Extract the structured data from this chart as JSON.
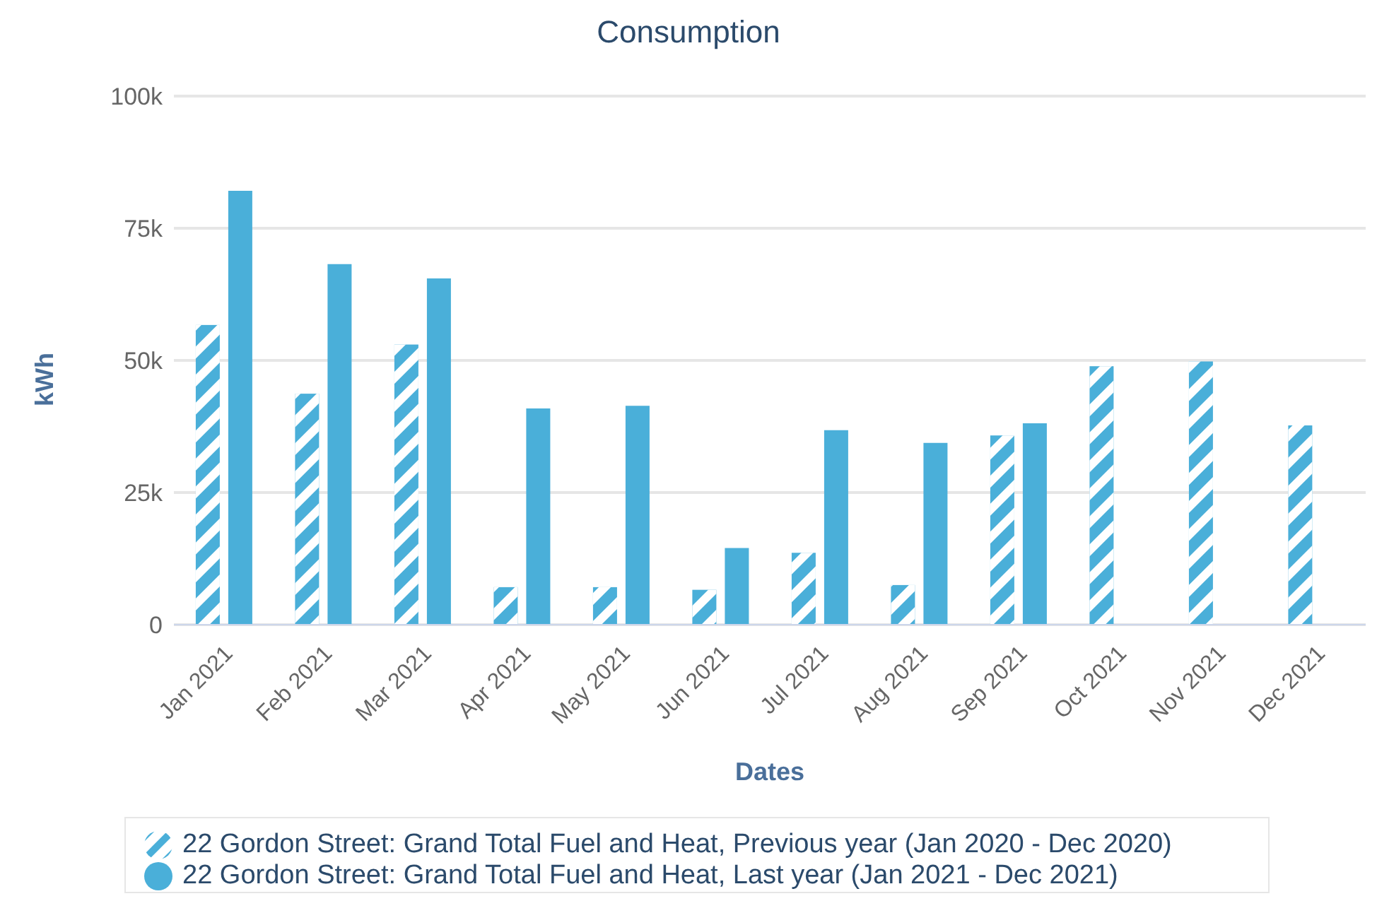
{
  "chart_data": {
    "type": "bar",
    "title": "Consumption",
    "xlabel": "Dates",
    "ylabel": "kWh",
    "categories": [
      "Jan 2021",
      "Feb 2021",
      "Mar 2021",
      "Apr 2021",
      "May 2021",
      "Jun 2021",
      "Jul 2021",
      "Aug 2021",
      "Sep 2021",
      "Oct 2021",
      "Nov 2021",
      "Dec 2021"
    ],
    "series": [
      {
        "name": "22 Gordon Street: Grand Total Fuel and Heat, Previous year (Jan 2020 - Dec 2020)",
        "color": "#4aafd9",
        "values": [
          56700,
          43700,
          53000,
          7100,
          7100,
          6600,
          13600,
          7500,
          35800,
          48900,
          49800,
          37700
        ]
      },
      {
        "name": "22 Gordon Street: Grand Total Fuel and Heat, Last year (Jan 2021 - Dec 2021)",
        "color": "#4aafd9",
        "values": [
          82100,
          68200,
          65500,
          40900,
          41400,
          14500,
          36800,
          34400,
          38100,
          null,
          null,
          null
        ]
      }
    ],
    "ylim": [
      0,
      100000
    ],
    "yticks": [
      {
        "value": 0,
        "label": "0"
      },
      {
        "value": 25000,
        "label": "25k"
      },
      {
        "value": 50000,
        "label": "50k"
      },
      {
        "value": 75000,
        "label": "75k"
      },
      {
        "value": 100000,
        "label": "100k"
      }
    ],
    "grid": "y",
    "legend": "bottom"
  }
}
